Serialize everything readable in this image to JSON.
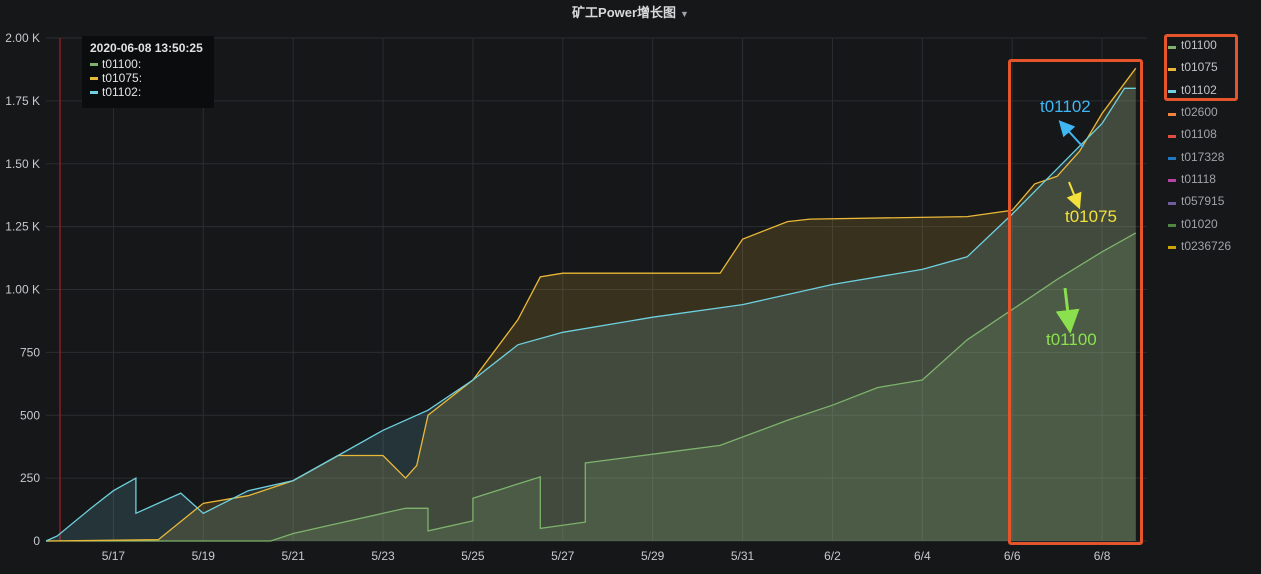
{
  "title": "矿工Power增长图",
  "tooltip": {
    "time": "2020-06-08 13:50:25",
    "rows": [
      {
        "label": "t01100:",
        "color": "#7eb26d"
      },
      {
        "label": "t01075:",
        "color": "#eab839"
      },
      {
        "label": "t01102:",
        "color": "#6ed0e0"
      }
    ]
  },
  "legend": [
    {
      "label": "t01100",
      "color": "#7eb26d",
      "highlight": true
    },
    {
      "label": "t01075",
      "color": "#eab839",
      "highlight": true
    },
    {
      "label": "t01102",
      "color": "#6ed0e0",
      "highlight": true
    },
    {
      "label": "t02600",
      "color": "#ef843c",
      "highlight": false
    },
    {
      "label": "t01108",
      "color": "#e24d42",
      "highlight": false
    },
    {
      "label": "t017328",
      "color": "#1f78c1",
      "highlight": false
    },
    {
      "label": "t01118",
      "color": "#ba43a9",
      "highlight": false
    },
    {
      "label": "t057915",
      "color": "#705da0",
      "highlight": false
    },
    {
      "label": "t01020",
      "color": "#508642",
      "highlight": false
    },
    {
      "label": "t0236726",
      "color": "#cca300",
      "highlight": false
    }
  ],
  "annotations": [
    {
      "text": "t01102",
      "color": "#3fb6f5"
    },
    {
      "text": "t01075",
      "color": "#f3e03b"
    },
    {
      "text": "t01100",
      "color": "#8be04e"
    }
  ],
  "chart_data": {
    "type": "area",
    "title": "矿工Power增长图",
    "xlabel": "",
    "ylabel": "",
    "x_range": [
      "2020-05-15 12:00",
      "2020-06-09"
    ],
    "ylim": [
      0,
      2000
    ],
    "grid": true,
    "legend_position": "right",
    "x_ticks": [
      "5/17",
      "5/19",
      "5/21",
      "5/23",
      "5/25",
      "5/27",
      "5/29",
      "5/31",
      "6/2",
      "6/4",
      "6/6",
      "6/8"
    ],
    "y_ticks": [
      {
        "value": 0,
        "label": "0"
      },
      {
        "value": 250,
        "label": "250"
      },
      {
        "value": 500,
        "label": "500"
      },
      {
        "value": 750,
        "label": "750"
      },
      {
        "value": 1000,
        "label": "1.00 K"
      },
      {
        "value": 1250,
        "label": "1.25 K"
      },
      {
        "value": 1500,
        "label": "1.50 K"
      },
      {
        "value": 1750,
        "label": "1.75 K"
      },
      {
        "value": 2000,
        "label": "2.00 K"
      }
    ],
    "series": [
      {
        "name": "t01100",
        "color": "#7eb26d",
        "points": [
          [
            "2020-05-15 12:00",
            0
          ],
          [
            "2020-05-20 12:00",
            0
          ],
          [
            "2020-05-21 00:00",
            30
          ],
          [
            "2020-05-22 00:00",
            70
          ],
          [
            "2020-05-23 00:00",
            110
          ],
          [
            "2020-05-23 12:00",
            130
          ],
          [
            "2020-05-24 00:00",
            130
          ],
          [
            "2020-05-24 00:00",
            40
          ],
          [
            "2020-05-25 00:00",
            80
          ],
          [
            "2020-05-25 00:00",
            170
          ],
          [
            "2020-05-26 12:00",
            255
          ],
          [
            "2020-05-26 12:00",
            50
          ],
          [
            "2020-05-27 12:00",
            75
          ],
          [
            "2020-05-27 12:00",
            310
          ],
          [
            "2020-05-29 00:00",
            345
          ],
          [
            "2020-05-30 12:00",
            380
          ],
          [
            "2020-06-01 00:00",
            480
          ],
          [
            "2020-06-02 00:00",
            540
          ],
          [
            "2020-06-03 00:00",
            610
          ],
          [
            "2020-06-04 00:00",
            640
          ],
          [
            "2020-06-05 00:00",
            800
          ],
          [
            "2020-06-06 00:00",
            920
          ],
          [
            "2020-06-07 00:00",
            1040
          ],
          [
            "2020-06-08 00:00",
            1150
          ],
          [
            "2020-06-08 18:00",
            1225
          ]
        ]
      },
      {
        "name": "t01075",
        "color": "#eab839",
        "points": [
          [
            "2020-05-15 12:00",
            0
          ],
          [
            "2020-05-18 00:00",
            5
          ],
          [
            "2020-05-19 00:00",
            150
          ],
          [
            "2020-05-20 00:00",
            180
          ],
          [
            "2020-05-21 00:00",
            240
          ],
          [
            "2020-05-22 00:00",
            340
          ],
          [
            "2020-05-23 00:00",
            340
          ],
          [
            "2020-05-23 12:00",
            250
          ],
          [
            "2020-05-23 18:00",
            300
          ],
          [
            "2020-05-24 00:00",
            500
          ],
          [
            "2020-05-25 00:00",
            640
          ],
          [
            "2020-05-26 00:00",
            880
          ],
          [
            "2020-05-26 12:00",
            1050
          ],
          [
            "2020-05-27 00:00",
            1065
          ],
          [
            "2020-05-30 12:00",
            1065
          ],
          [
            "2020-05-31 00:00",
            1200
          ],
          [
            "2020-06-01 00:00",
            1270
          ],
          [
            "2020-06-01 12:00",
            1280
          ],
          [
            "2020-06-05 00:00",
            1290
          ],
          [
            "2020-06-06 00:00",
            1315
          ],
          [
            "2020-06-06 12:00",
            1420
          ],
          [
            "2020-06-07 00:00",
            1450
          ],
          [
            "2020-06-07 12:00",
            1550
          ],
          [
            "2020-06-08 00:00",
            1700
          ],
          [
            "2020-06-08 18:00",
            1880
          ]
        ]
      },
      {
        "name": "t01102",
        "color": "#6ed0e0",
        "points": [
          [
            "2020-05-15 12:00",
            0
          ],
          [
            "2020-05-15 18:00",
            20
          ],
          [
            "2020-05-16 12:00",
            130
          ],
          [
            "2020-05-17 00:00",
            200
          ],
          [
            "2020-05-17 12:00",
            250
          ],
          [
            "2020-05-17 12:00",
            110
          ],
          [
            "2020-05-18 12:00",
            190
          ],
          [
            "2020-05-19 00:00",
            110
          ],
          [
            "2020-05-20 00:00",
            200
          ],
          [
            "2020-05-21 00:00",
            240
          ],
          [
            "2020-05-22 00:00",
            340
          ],
          [
            "2020-05-23 00:00",
            440
          ],
          [
            "2020-05-24 00:00",
            520
          ],
          [
            "2020-05-25 00:00",
            640
          ],
          [
            "2020-05-26 00:00",
            780
          ],
          [
            "2020-05-27 00:00",
            830
          ],
          [
            "2020-05-29 00:00",
            890
          ],
          [
            "2020-05-31 00:00",
            940
          ],
          [
            "2020-06-02 00:00",
            1020
          ],
          [
            "2020-06-04 00:00",
            1080
          ],
          [
            "2020-06-05 00:00",
            1130
          ],
          [
            "2020-06-06 00:00",
            1300
          ],
          [
            "2020-06-07 00:00",
            1480
          ],
          [
            "2020-06-08 00:00",
            1660
          ],
          [
            "2020-06-08 12:00",
            1800
          ],
          [
            "2020-06-08 18:00",
            1800
          ]
        ]
      }
    ]
  }
}
